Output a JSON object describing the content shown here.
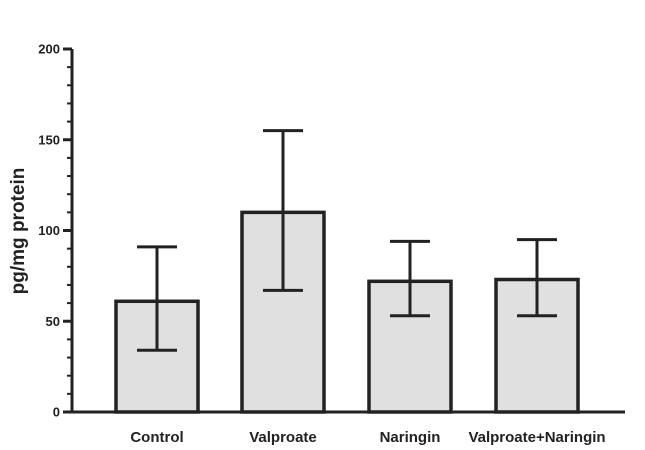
{
  "chart_data": {
    "type": "bar",
    "title": "",
    "xlabel": "",
    "ylabel": "pg/mg protein",
    "ylim": [
      0,
      200
    ],
    "y_major_ticks": [
      0,
      50,
      100,
      150,
      200
    ],
    "y_minor_step": 10,
    "grid": false,
    "legend": "none",
    "categories": [
      "Control",
      "Valproate",
      "Naringin",
      "Valproate+Naringin"
    ],
    "values": [
      61,
      110,
      72,
      73
    ],
    "error_low": [
      34,
      67,
      53,
      53
    ],
    "error_high": [
      91,
      155,
      94,
      95
    ],
    "bar_color": "#e0e0e0",
    "line_color": "#222222"
  }
}
